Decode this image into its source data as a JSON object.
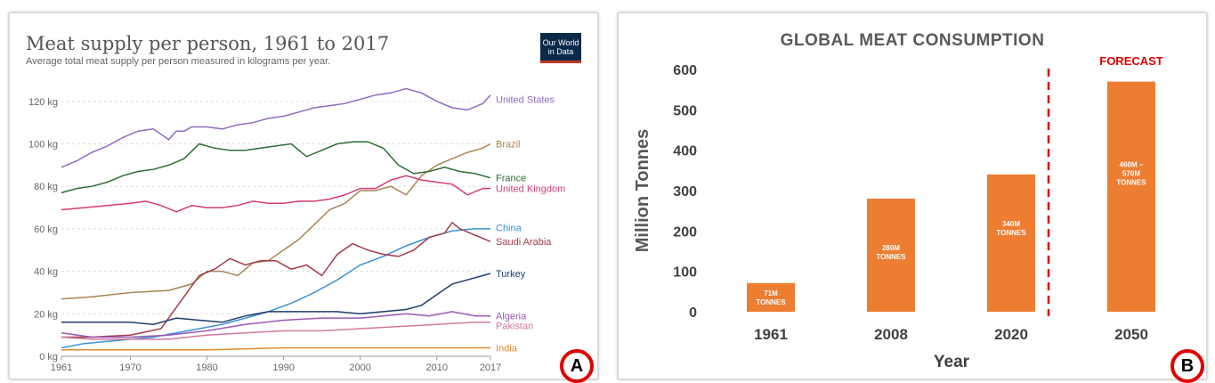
{
  "chart_data": [
    {
      "type": "line",
      "title": "Meat supply per person, 1961 to 2017",
      "subtitle": "Average total meat supply per person measured in kilograms per year.",
      "logo_text": [
        "Our World",
        "in Data"
      ],
      "badge": "A",
      "y_ticks": [
        "0 kg",
        "20 kg",
        "40 kg",
        "60 kg",
        "80 kg",
        "100 kg",
        "120 kg"
      ],
      "x_ticks": [
        "1961",
        "1970",
        "1980",
        "1990",
        "2000",
        "2010",
        "2017"
      ],
      "ylim": [
        0,
        130
      ],
      "xlim": [
        1961,
        2017
      ],
      "grid": true,
      "series": [
        {
          "name": "United States",
          "color": "#8e6cc0",
          "x": [
            1961,
            1963,
            1965,
            1967,
            1969,
            1971,
            1973,
            1975,
            1976,
            1977,
            1978,
            1980,
            1982,
            1984,
            1986,
            1988,
            1990,
            1992,
            1994,
            1996,
            1998,
            2000,
            2002,
            2004,
            2006,
            2008,
            2010,
            2012,
            2014,
            2016,
            2017
          ],
          "y": [
            89,
            92,
            96,
            99,
            103,
            106,
            107,
            102,
            106,
            106,
            108,
            108,
            107,
            109,
            110,
            112,
            113,
            115,
            117,
            118,
            119,
            121,
            123,
            124,
            126,
            124,
            120,
            117,
            116,
            119,
            123
          ]
        },
        {
          "name": "Brazil",
          "color": "#a98554",
          "x": [
            1961,
            1965,
            1970,
            1975,
            1978,
            1980,
            1982,
            1984,
            1986,
            1988,
            1990,
            1992,
            1994,
            1996,
            1998,
            2000,
            2002,
            2004,
            2006,
            2008,
            2010,
            2012,
            2014,
            2016,
            2017
          ],
          "y": [
            27,
            28,
            30,
            31,
            34,
            40,
            40,
            38,
            44,
            45,
            50,
            55,
            62,
            69,
            72,
            78,
            78,
            80,
            76,
            85,
            90,
            93,
            96,
            98,
            100
          ]
        },
        {
          "name": "France",
          "color": "#2f6d34",
          "x": [
            1961,
            1963,
            1965,
            1967,
            1969,
            1971,
            1973,
            1975,
            1977,
            1979,
            1981,
            1983,
            1985,
            1987,
            1989,
            1991,
            1993,
            1995,
            1997,
            1999,
            2001,
            2003,
            2005,
            2007,
            2009,
            2011,
            2013,
            2015,
            2017
          ],
          "y": [
            77,
            79,
            80,
            82,
            85,
            87,
            88,
            90,
            93,
            100,
            98,
            97,
            97,
            98,
            99,
            100,
            94,
            97,
            100,
            101,
            101,
            98,
            90,
            86,
            87,
            89,
            87,
            86,
            84
          ]
        },
        {
          "name": "United Kingdom",
          "color": "#d63c78",
          "x": [
            1961,
            1964,
            1967,
            1970,
            1972,
            1974,
            1976,
            1978,
            1980,
            1982,
            1984,
            1986,
            1988,
            1990,
            1992,
            1994,
            1996,
            1998,
            2000,
            2002,
            2004,
            2006,
            2008,
            2010,
            2012,
            2014,
            2016,
            2017
          ],
          "y": [
            69,
            70,
            71,
            72,
            73,
            71,
            68,
            71,
            70,
            70,
            71,
            73,
            72,
            72,
            73,
            73,
            74,
            76,
            79,
            79,
            83,
            85,
            83,
            82,
            81,
            76,
            79,
            79
          ]
        },
        {
          "name": "China",
          "color": "#3b8fd6",
          "x": [
            1961,
            1964,
            1967,
            1970,
            1973,
            1976,
            1979,
            1982,
            1985,
            1988,
            1991,
            1994,
            1997,
            2000,
            2003,
            2006,
            2009,
            2012,
            2015,
            2017
          ],
          "y": [
            4,
            6,
            7,
            8,
            9,
            11,
            13,
            15,
            18,
            21,
            25,
            30,
            36,
            43,
            47,
            52,
            56,
            59,
            60,
            60
          ]
        },
        {
          "name": "Saudi Arabia",
          "color": "#a33b4b",
          "x": [
            1961,
            1965,
            1970,
            1974,
            1977,
            1979,
            1981,
            1983,
            1985,
            1987,
            1989,
            1991,
            1993,
            1995,
            1997,
            1999,
            2001,
            2003,
            2005,
            2007,
            2009,
            2011,
            2012,
            2013,
            2015,
            2017
          ],
          "y": [
            9,
            9,
            10,
            13,
            28,
            38,
            41,
            46,
            43,
            45,
            45,
            41,
            43,
            38,
            48,
            53,
            50,
            48,
            47,
            50,
            56,
            58,
            63,
            60,
            57,
            54
          ]
        },
        {
          "name": "Turkey",
          "color": "#1f3d6e",
          "x": [
            1961,
            1965,
            1970,
            1973,
            1976,
            1979,
            1982,
            1985,
            1988,
            1991,
            1994,
            1997,
            2000,
            2003,
            2006,
            2008,
            2010,
            2012,
            2014,
            2016,
            2017
          ],
          "y": [
            16,
            16,
            16,
            15,
            18,
            17,
            16,
            19,
            21,
            21,
            21,
            21,
            20,
            21,
            22,
            24,
            29,
            34,
            36,
            38,
            39
          ]
        },
        {
          "name": "Algeria",
          "color": "#9b59b6",
          "x": [
            1961,
            1965,
            1970,
            1975,
            1980,
            1985,
            1990,
            1995,
            2000,
            2003,
            2006,
            2009,
            2012,
            2015,
            2017
          ],
          "y": [
            11,
            9,
            9,
            10,
            12,
            15,
            17,
            18,
            18,
            19,
            20,
            19,
            21,
            19,
            19
          ]
        },
        {
          "name": "Pakistan",
          "color": "#d478a0",
          "x": [
            1961,
            1965,
            1970,
            1975,
            1980,
            1985,
            1990,
            1995,
            2000,
            2005,
            2010,
            2015,
            2017
          ],
          "y": [
            9,
            8,
            8,
            8,
            10,
            11,
            12,
            12,
            13,
            14,
            15,
            16,
            16
          ]
        },
        {
          "name": "India",
          "color": "#e08a2d",
          "x": [
            1961,
            1970,
            1980,
            1990,
            2000,
            2005,
            2010,
            2015,
            2017
          ],
          "y": [
            3,
            3,
            3,
            4,
            4,
            4,
            4,
            4,
            4
          ]
        }
      ]
    },
    {
      "type": "bar",
      "title": "GLOBAL MEAT CONSUMPTION",
      "xlabel": "Year",
      "ylabel": "Million Tonnes",
      "categories": [
        "1961",
        "2008",
        "2020",
        "2050"
      ],
      "values": [
        71,
        280,
        340,
        570
      ],
      "bar_labels": [
        [
          "71M",
          "TONNES"
        ],
        [
          "280M",
          "TONNES"
        ],
        [
          "340M",
          "TONNES"
        ],
        [
          "460M –",
          "570M",
          "TONNES"
        ]
      ],
      "y_ticks": [
        "0",
        "100",
        "200",
        "300",
        "400",
        "500",
        "600"
      ],
      "ylim": [
        0,
        600
      ],
      "annotation": "FORECAST",
      "bar_color": "#ed7d31",
      "forecast_color": "#e00000",
      "badge": "B"
    }
  ]
}
